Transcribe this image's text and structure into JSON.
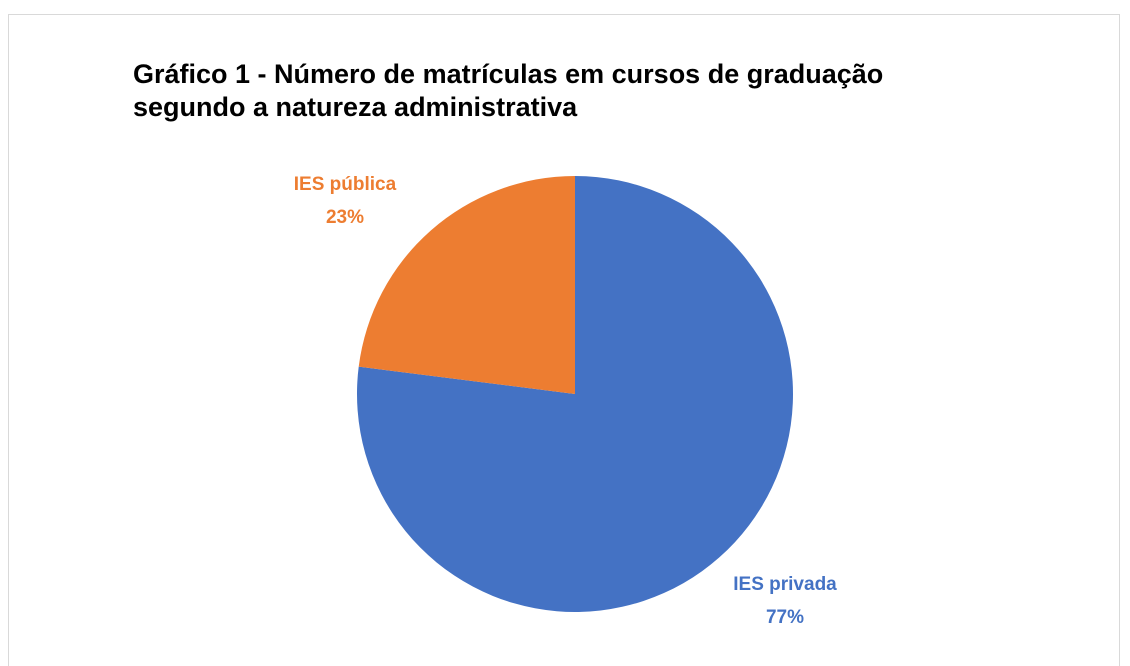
{
  "chart_data": {
    "type": "pie",
    "title": "Gráfico 1 - Número de matrículas em cursos de graduação segundo a natureza administrativa",
    "categories": [
      "IES privada",
      "IES pública"
    ],
    "values": [
      77,
      23
    ],
    "value_labels": [
      "77%",
      "23%"
    ],
    "colors": [
      "#4472c4",
      "#ed7d31"
    ]
  }
}
